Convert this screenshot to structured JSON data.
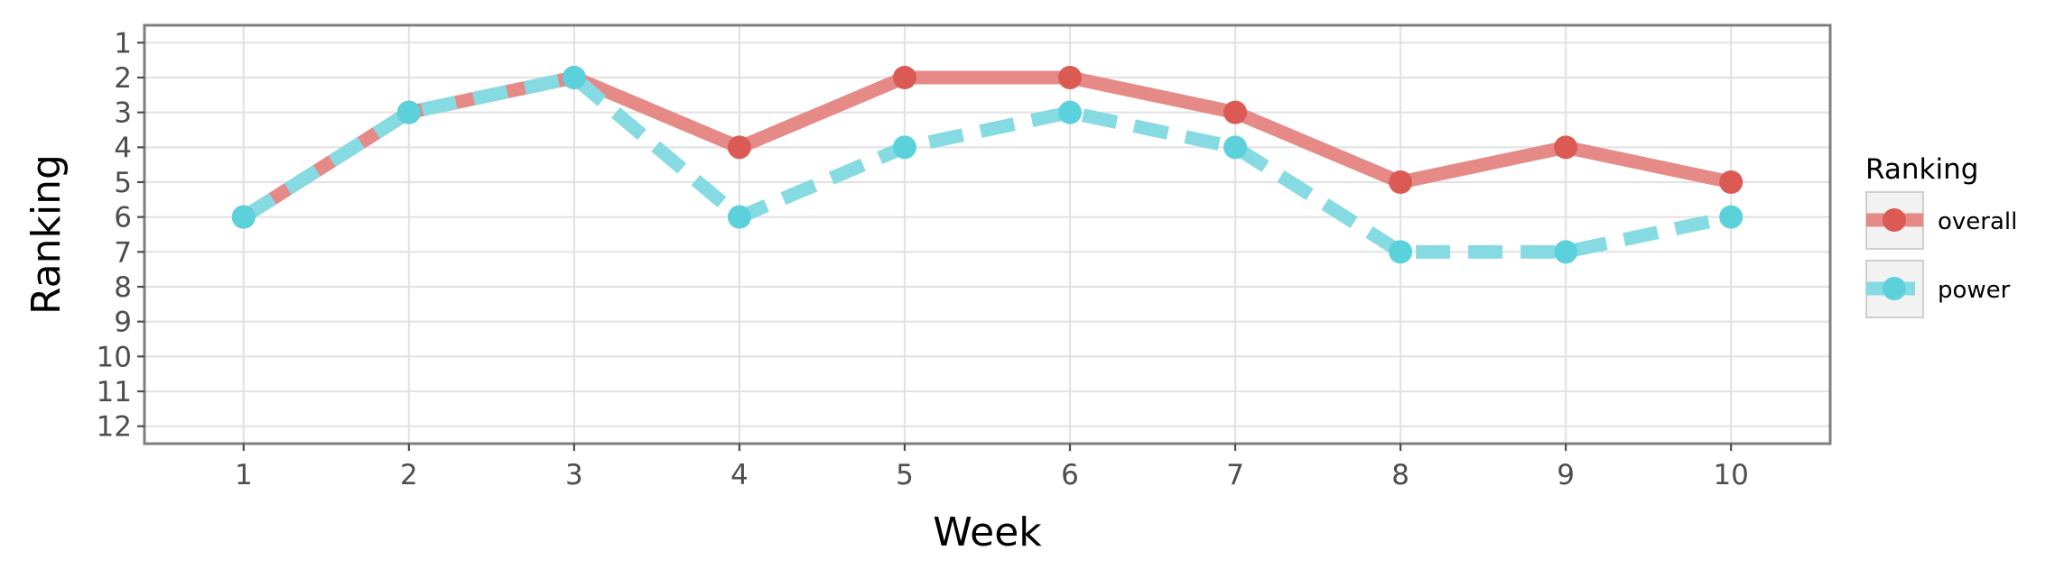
{
  "chart_data": {
    "type": "line",
    "x": [
      1,
      2,
      3,
      4,
      5,
      6,
      7,
      8,
      9,
      10
    ],
    "xlabel": "Week",
    "ylabel": "Ranking",
    "xlim": [
      0.4,
      10.6
    ],
    "ylim": [
      12.5,
      0.5
    ],
    "y_reversed": true,
    "xticks": [
      "1",
      "2",
      "3",
      "4",
      "5",
      "6",
      "7",
      "8",
      "9",
      "10"
    ],
    "yticks": [
      "1",
      "2",
      "3",
      "4",
      "5",
      "6",
      "7",
      "8",
      "9",
      "10",
      "11",
      "12"
    ],
    "grid": true,
    "legend": {
      "title": "Ranking",
      "position": "right"
    },
    "series": [
      {
        "name": "overall",
        "values": [
          6,
          3,
          2,
          4,
          2,
          2,
          3,
          5,
          4,
          5
        ],
        "line_color": "#e58a86",
        "point_color": "#dc5a54",
        "line_style": "solid"
      },
      {
        "name": "power",
        "values": [
          6,
          3,
          2,
          6,
          4,
          3,
          4,
          7,
          7,
          6
        ],
        "line_color": "#86dbe3",
        "point_color": "#5bd1dc",
        "line_style": "dashed"
      }
    ]
  }
}
